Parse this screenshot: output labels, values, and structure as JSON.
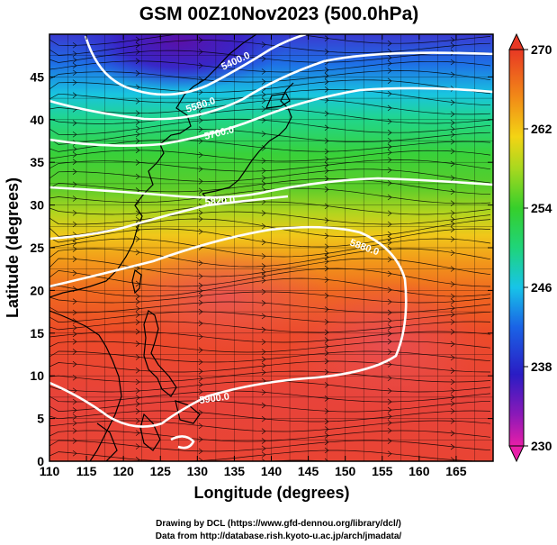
{
  "title": "GSM 00Z10Nov2023 (500.0hPa)",
  "x_axis": {
    "label": "Longitude (degrees)",
    "range": [
      110,
      170
    ],
    "ticks": [
      "110",
      "115",
      "120",
      "125",
      "130",
      "135",
      "140",
      "145",
      "150",
      "155",
      "160",
      "165"
    ],
    "tick_values": [
      110,
      115,
      120,
      125,
      130,
      135,
      140,
      145,
      150,
      155,
      160,
      165
    ]
  },
  "y_axis": {
    "label": "Latitude  (degrees)",
    "range": [
      0,
      50
    ],
    "ticks": [
      "0",
      "5",
      "10",
      "15",
      "20",
      "25",
      "30",
      "35",
      "40",
      "45"
    ],
    "tick_values": [
      0,
      5,
      10,
      15,
      20,
      25,
      30,
      35,
      40,
      45
    ]
  },
  "colorbar": {
    "min": 230,
    "max": 270,
    "tick_labels": [
      "270",
      "262",
      "254",
      "246",
      "238",
      "230"
    ],
    "tick_values": [
      270,
      262,
      254,
      246,
      238,
      230
    ]
  },
  "contour_labels": [
    {
      "text": "5400.0",
      "value": 5400
    },
    {
      "text": "5580.0",
      "value": 5580
    },
    {
      "text": "5700.0",
      "value": 5700
    },
    {
      "text": "5820.0",
      "value": 5820
    },
    {
      "text": "5880.0",
      "value": 5880
    },
    {
      "text": "5900.0",
      "value": 5900
    }
  ],
  "credits": {
    "line1": "Drawing by DCL (https://www.gfd-dennou.org/library/dcl/)",
    "line2": "Data from http://database.rish.kyoto-u.ac.jp/arch/jmadata/"
  },
  "colors": {
    "contour": "#ffffff",
    "coast": "#000000",
    "streamline": "#000000"
  }
}
